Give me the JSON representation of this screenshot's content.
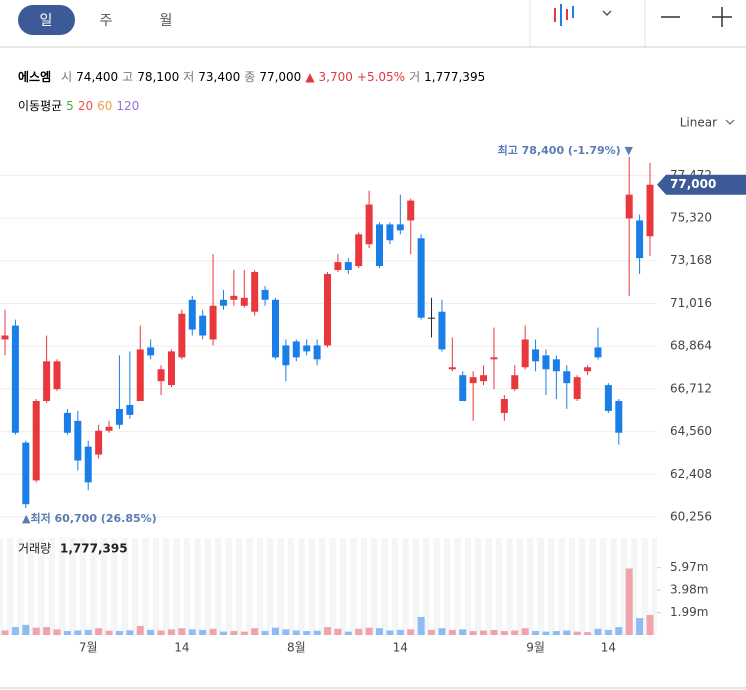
{
  "toolbar": {
    "tabs": [
      "일",
      "주",
      "월"
    ]
  },
  "quote": {
    "name": "에스엠",
    "open_label": "시",
    "open": "74,400",
    "high_label": "고",
    "high": "78,100",
    "low_label": "저",
    "low": "73,400",
    "close_label": "종",
    "close": "77,000",
    "change_mark": "▲",
    "change": "3,700",
    "change_pct": "+5.05%",
    "volume_label": "거",
    "volume": "1,777,395"
  },
  "chart_data": {
    "type": "candlestick",
    "moving_average": {
      "title": "이동평균",
      "periods": [
        5,
        20,
        60,
        120
      ],
      "colors": [
        "#3cb043",
        "#e8524f",
        "#f39c4a",
        "#9b6ee0"
      ]
    },
    "scale_label": "Linear",
    "max_label": "최고 78,400 (-1.79%) ▼",
    "min_label": "▲최저 60,700 (26.85%)",
    "last_price_label": "77,000",
    "last_price_color": "#3d5a98",
    "up_color": "#e8383d",
    "down_color": "#1a7ee8",
    "flat_color": "#222222",
    "categories": [
      null,
      null,
      null,
      null,
      null,
      null,
      null,
      null,
      "7월",
      null,
      null,
      null,
      null,
      null,
      null,
      null,
      null,
      "14",
      null,
      null,
      null,
      null,
      null,
      null,
      null,
      null,
      null,
      null,
      "8월",
      null,
      null,
      null,
      null,
      null,
      null,
      null,
      null,
      null,
      "14",
      null,
      null,
      null,
      null,
      null,
      null,
      null,
      null,
      null,
      null,
      null,
      null,
      "9월",
      null,
      null,
      null,
      null,
      null,
      null,
      "14",
      null,
      null,
      null,
      null
    ],
    "open": [
      69200,
      69900,
      64000,
      62100,
      66100,
      66700,
      65500,
      65100,
      63800,
      63400,
      64600,
      65700,
      65900,
      66100,
      68800,
      67100,
      66900,
      68300,
      71200,
      70400,
      69200,
      71200,
      71200,
      70900,
      70600,
      71700,
      71200,
      68900,
      69100,
      68900,
      68900,
      68900,
      72700,
      73100,
      72900,
      74000,
      75000,
      75000,
      75000,
      75200,
      74300,
      70300,
      70600,
      67700,
      67400,
      67000,
      67100,
      68200,
      65500,
      66700,
      67800,
      68700,
      68400,
      68200,
      67600,
      66200,
      67600,
      68800,
      66900,
      66100,
      75300,
      75200,
      74400
    ],
    "high": [
      70700,
      70200,
      64100,
      66200,
      69400,
      68200,
      65700,
      65600,
      64100,
      64900,
      65100,
      68400,
      68600,
      69900,
      69200,
      67900,
      68700,
      70700,
      71400,
      70700,
      73500,
      71700,
      72700,
      72700,
      72700,
      71900,
      71300,
      69200,
      69200,
      69200,
      69200,
      72600,
      73500,
      73300,
      74600,
      76700,
      75100,
      75100,
      76500,
      76300,
      74500,
      71300,
      71200,
      69300,
      67600,
      67600,
      67900,
      69800,
      66400,
      67900,
      69900,
      69200,
      68700,
      68400,
      67900,
      67400,
      67900,
      69800,
      67000,
      66200,
      78400,
      75500,
      78100
    ],
    "low": [
      68400,
      64400,
      60700,
      62000,
      66000,
      66600,
      64400,
      62600,
      61600,
      63200,
      64500,
      64700,
      65200,
      66100,
      68200,
      66400,
      66800,
      68200,
      69400,
      69200,
      68900,
      70700,
      70900,
      70800,
      70400,
      70900,
      68200,
      67100,
      68100,
      68400,
      67900,
      68800,
      72600,
      72500,
      72800,
      73800,
      72800,
      74000,
      74500,
      73500,
      70200,
      69300,
      68600,
      67600,
      66100,
      65100,
      66900,
      66700,
      65100,
      66600,
      67700,
      67600,
      66400,
      66200,
      65700,
      66100,
      67400,
      68200,
      65500,
      63900,
      71400,
      72500,
      73400
    ],
    "close": [
      69400,
      64500,
      60900,
      66100,
      68100,
      68100,
      64500,
      63100,
      62000,
      64600,
      64800,
      64900,
      65400,
      68700,
      68400,
      67700,
      68600,
      70500,
      69700,
      69400,
      70900,
      70900,
      71400,
      71300,
      72600,
      71200,
      68300,
      67900,
      68300,
      68600,
      68200,
      72500,
      73100,
      72700,
      74500,
      76000,
      72900,
      74200,
      74700,
      76200,
      70300,
      70300,
      68700,
      67800,
      66100,
      67300,
      67400,
      68300,
      66200,
      67400,
      69200,
      68100,
      67700,
      67600,
      67000,
      67300,
      67800,
      68300,
      65600,
      64500,
      76500,
      73300,
      77000
    ],
    "ylim": [
      59600,
      79000
    ],
    "yticks": [
      {
        "value": 60256,
        "label": "60,256"
      },
      {
        "value": 62408,
        "label": "62,408"
      },
      {
        "value": 64560,
        "label": "64,560"
      },
      {
        "value": 66712,
        "label": "66,712"
      },
      {
        "value": 68864,
        "label": "68,864"
      },
      {
        "value": 71016,
        "label": "71,016"
      },
      {
        "value": 73168,
        "label": "73,168"
      },
      {
        "value": 75320,
        "label": "75,320"
      },
      {
        "value": 77472,
        "label": "77,472"
      }
    ],
    "grid": true,
    "volume": {
      "title": "거래량",
      "value_label": "1,777,395",
      "up_color": "#f0a3aa",
      "down_color": "#8cbcf3",
      "values": [
        400000,
        700000,
        900000,
        650000,
        700000,
        500000,
        350000,
        400000,
        450000,
        600000,
        380000,
        350000,
        420000,
        800000,
        450000,
        400000,
        500000,
        600000,
        500000,
        450000,
        550000,
        300000,
        350000,
        300000,
        600000,
        350000,
        650000,
        500000,
        400000,
        350000,
        380000,
        700000,
        550000,
        300000,
        550000,
        650000,
        600000,
        400000,
        450000,
        500000,
        1600000,
        450000,
        600000,
        450000,
        500000,
        350000,
        400000,
        450000,
        350000,
        400000,
        600000,
        350000,
        300000,
        350000,
        400000,
        300000,
        250000,
        550000,
        450000,
        700000,
        5900000,
        1500000,
        1777395
      ],
      "ylim": [
        0,
        8600000
      ],
      "yticks": [
        {
          "value": 1990000,
          "label": "1.99m"
        },
        {
          "value": 3980000,
          "label": "3.98m"
        },
        {
          "value": 5970000,
          "label": "5.97m"
        }
      ]
    }
  }
}
